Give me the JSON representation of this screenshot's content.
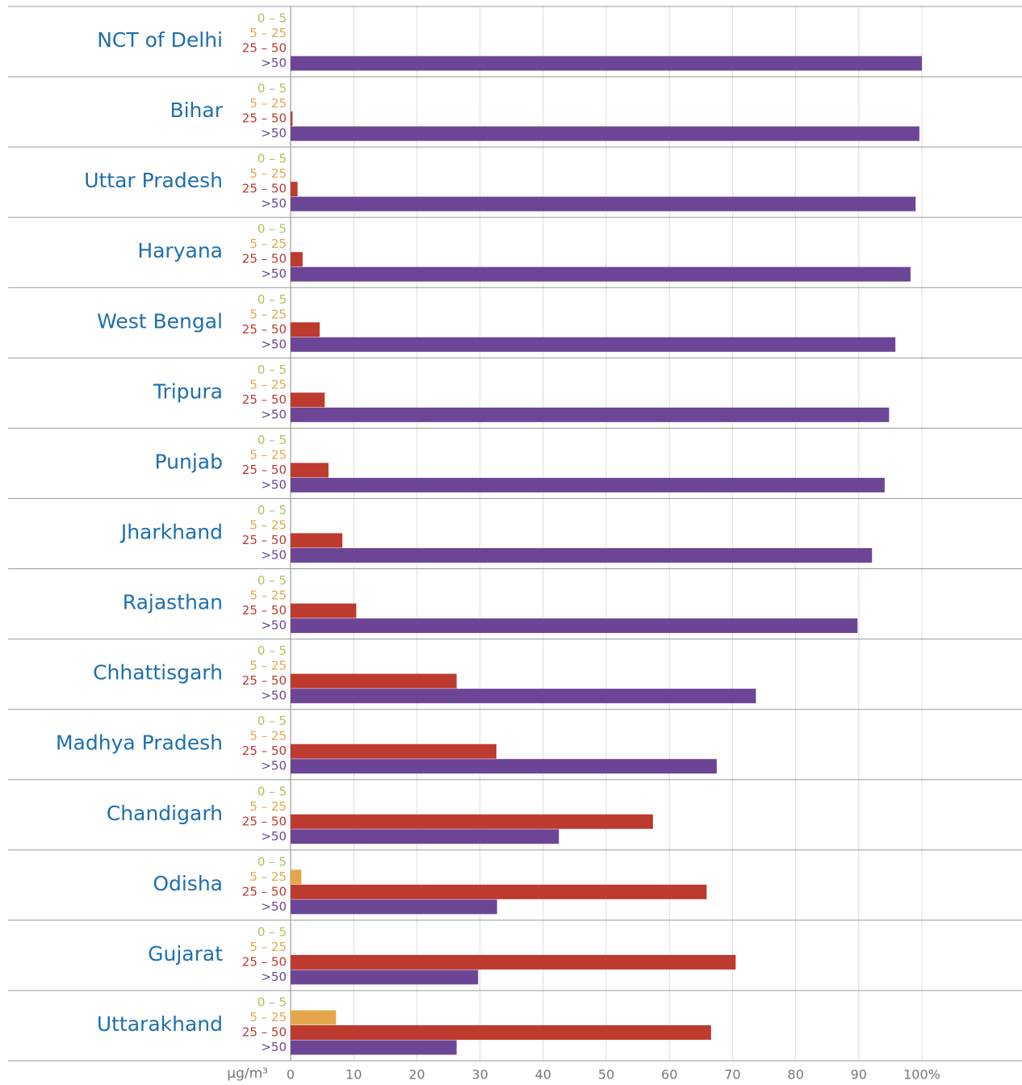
{
  "chart_data": {
    "type": "bar",
    "orientation": "horizontal",
    "categories": [
      "NCT of Delhi",
      "Bihar",
      "Uttar Pradesh",
      "Haryana",
      "West Bengal",
      "Tripura",
      "Punjab",
      "Jharkhand",
      "Rajasthan",
      "Chhattisgarh",
      "Madhya Pradesh",
      "Chandigarh",
      "Odisha",
      "Gujarat",
      "Uttarakhand"
    ],
    "series": [
      {
        "name": "0 – 5",
        "color": "#a4c75a",
        "values": [
          0,
          0,
          0,
          0,
          0,
          0,
          0,
          0,
          0,
          0,
          0,
          0,
          0,
          0,
          0
        ]
      },
      {
        "name": "5 – 25",
        "color": "#e5a64b",
        "values": [
          0,
          0,
          0,
          0,
          0,
          0,
          0,
          0,
          0,
          0,
          0,
          0,
          1.7,
          0,
          7.2
        ]
      },
      {
        "name": "25 – 50",
        "color": "#bd3a2f",
        "values": [
          0,
          0.3,
          1.1,
          1.9,
          4.6,
          5.4,
          6.0,
          8.2,
          10.4,
          26.3,
          32.6,
          57.4,
          65.9,
          70.5,
          66.6
        ]
      },
      {
        "name": ">50",
        "color": "#6d4597",
        "values": [
          100,
          99.6,
          99,
          98.2,
          95.8,
          94.8,
          94.1,
          92.1,
          89.8,
          73.7,
          67.5,
          42.5,
          32.7,
          29.7,
          26.3
        ]
      }
    ],
    "xlabel": "µg/m³",
    "xlim": [
      0,
      115
    ],
    "xticks": [
      0,
      10,
      20,
      30,
      40,
      50,
      60,
      70,
      80,
      90,
      {
        "value": 100,
        "label": "100%"
      }
    ],
    "grid": true
  }
}
